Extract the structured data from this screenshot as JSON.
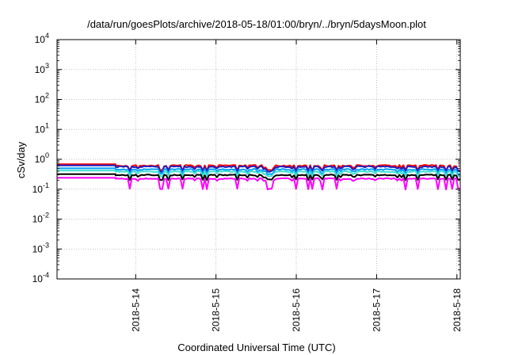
{
  "chart_data": {
    "type": "line",
    "title": "/data/run/goesPlots/archive/2018-05-18/01:00/bryn/../bryn/5daysMoon.plot",
    "xlabel": "Coordinated Universal Time (UTC)",
    "ylabel": "cSv/day",
    "yscale": "log",
    "ylim": [
      0.0001,
      10000
    ],
    "xlim": [
      "2018-05-13T00:30",
      "2018-05-18T01:00"
    ],
    "grid": true,
    "x_ticks": [
      "2018-5-14",
      "2018-5-15",
      "2018-5-16",
      "2018-5-17",
      "2018-5-18"
    ],
    "y_ticks": [
      {
        "base": "10",
        "exp": "4"
      },
      {
        "base": "10",
        "exp": "3"
      },
      {
        "base": "10",
        "exp": "2"
      },
      {
        "base": "10",
        "exp": "1"
      },
      {
        "base": "10",
        "exp": "0"
      },
      {
        "base": "10",
        "exp": "-1"
      },
      {
        "base": "10",
        "exp": "-2"
      },
      {
        "base": "10",
        "exp": "-3"
      },
      {
        "base": "10",
        "exp": "-4"
      }
    ],
    "flat_until": "2018-05-13T18:00",
    "series": [
      {
        "color": "#ff0000",
        "level": 0.68,
        "noise": 0.12
      },
      {
        "color": "#2020c0",
        "level": 0.62,
        "noise": 0.12
      },
      {
        "color": "#00a0ff",
        "level": 0.5,
        "noise": 0.11
      },
      {
        "color": "#40e0d0",
        "level": 0.42,
        "noise": 0.1
      },
      {
        "color": "#000000",
        "level": 0.32,
        "noise": 0.09
      },
      {
        "color": "#ff00ff",
        "level": 0.24,
        "noise": 0.08
      }
    ]
  }
}
